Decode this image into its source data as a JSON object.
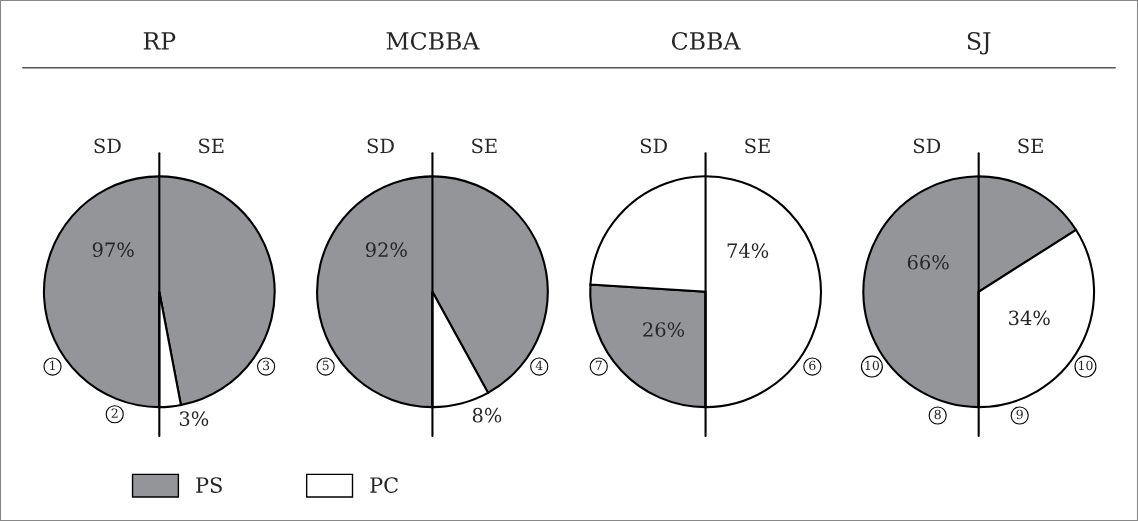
{
  "chart_data": [
    {
      "type": "pie",
      "title": "RP",
      "categories": [
        "PS",
        "PC"
      ],
      "values": [
        97,
        3
      ],
      "colors": [
        "#939598",
        "#ffffff"
      ],
      "data_labels": true,
      "value_labels": [
        "97%",
        "3%"
      ],
      "legend": "bottom",
      "annotations": [
        "SD",
        "SE",
        "1",
        "2",
        "3"
      ]
    },
    {
      "type": "pie",
      "title": "MCBBA",
      "categories": [
        null,
        null
      ],
      "values": [
        92,
        8
      ],
      "colors": [
        "#939598",
        "#ffffff"
      ],
      "data_labels": true,
      "value_labels": [
        "92%",
        "8%"
      ],
      "annotations": [
        "SD",
        "SE",
        "5",
        "4"
      ]
    },
    {
      "type": "pie",
      "title": "CBBA",
      "categories": [
        null,
        null
      ],
      "values": [
        26,
        74
      ],
      "colors": [
        "#939598",
        "#ffffff"
      ],
      "data_labels": true,
      "value_labels": [
        "26%",
        "74%"
      ],
      "annotations": [
        "SD",
        "SE",
        "7",
        "6"
      ]
    },
    {
      "type": "pie",
      "title": "SJ",
      "categories": [
        null,
        null
      ],
      "values": [
        66,
        34
      ],
      "colors": [
        "#939598",
        "#ffffff"
      ],
      "data_labels": true,
      "value_labels": [
        "66%",
        "34%"
      ],
      "annotations": [
        "SD",
        "SE",
        "10",
        "8",
        "9",
        "10"
      ]
    }
  ]
}
